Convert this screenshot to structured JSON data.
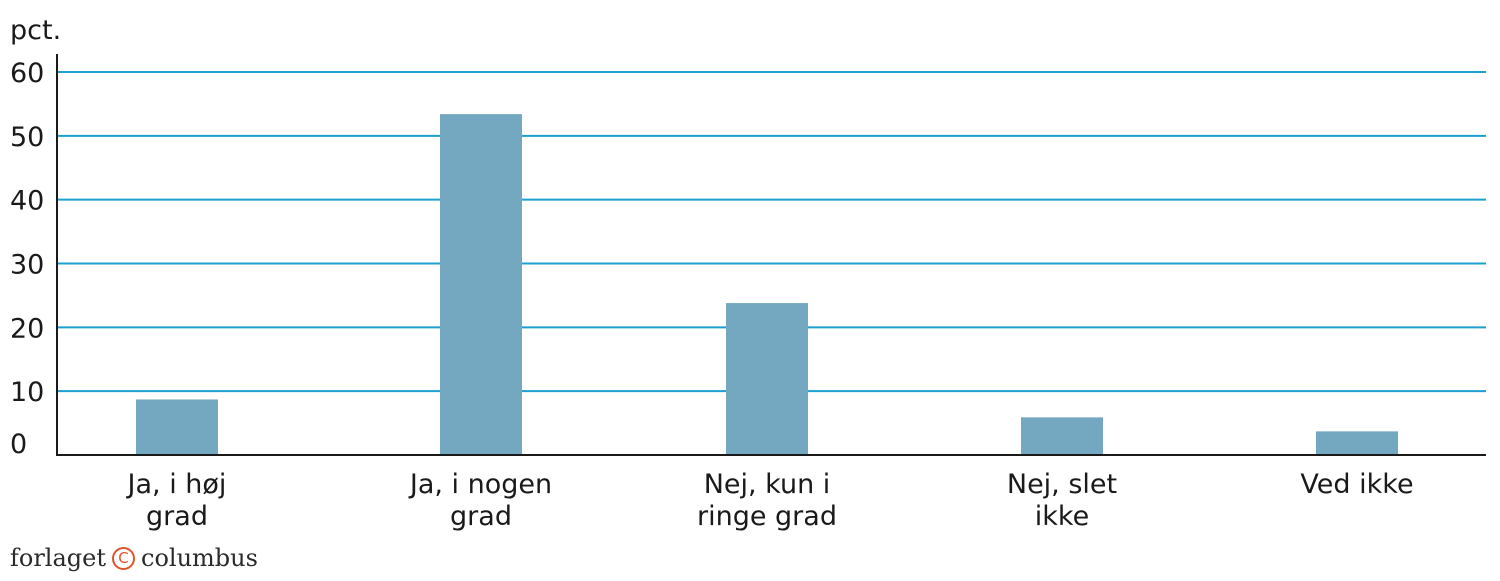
{
  "chart_data": {
    "type": "bar",
    "ylabel": "pct.",
    "ylim": [
      0,
      60
    ],
    "yticks": [
      0,
      10,
      20,
      30,
      40,
      50,
      60
    ],
    "grid": true,
    "categories": [
      [
        "Ja, i høj",
        "grad"
      ],
      [
        "Ja, i nogen",
        "grad"
      ],
      [
        "Nej, kun i",
        "ringe grad"
      ],
      [
        "Nej, slet",
        "ikke"
      ],
      [
        "Ved ikke"
      ]
    ],
    "values": [
      8.7,
      53.4,
      23.8,
      5.9,
      3.7
    ],
    "bar_color": "#74a8c1",
    "grid_color": "#1ba0d0"
  },
  "footer": {
    "publisher_left": "forlaget",
    "publisher_right": "columbus",
    "copyright_icon": "copyright-icon"
  }
}
